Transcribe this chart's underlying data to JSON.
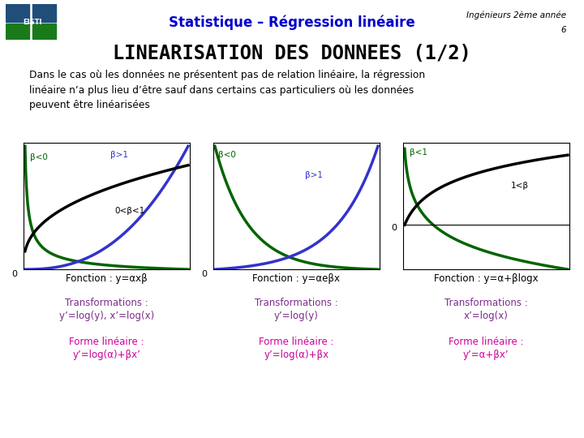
{
  "title": "Statistique – Régression linéaire",
  "subtitle": "LINEARISATION DES DONNEES (1/2)",
  "top_right_line1": "Ingénieurs 2ème année",
  "top_right_line2": "6",
  "body_text": "Dans le cas où les données ne présentent pas de relation linéaire, la régression\nlinéaire n’a plus lieu d’être sauf dans certains cas particuliers où les données\npeuvent être linéarisées",
  "panel1_label0": "β<0",
  "panel1_label1": "β>1",
  "panel1_label2": "0<β<1",
  "panel2_label0": "β<0",
  "panel2_label1": "β>1",
  "panel3_label0": "β<1",
  "panel3_label1": "1<β",
  "func1": "Fonction : y=αxβ",
  "func2": "Fonction : y=αeβx",
  "func3": "Fonction : y=α+βlogx",
  "trans1_line1": "Transformations :",
  "trans1_line2": "y’=log(y), x’=log(x)",
  "trans2_line1": "Transformations :",
  "trans2_line2": "y’=log(y)",
  "trans3_line1": "Transformations :",
  "trans3_line2": "x’=log(x)",
  "forme1_line1": "Forme linéaire :",
  "forme1_line2": "y’=log(α)+βx’",
  "forme2_line1": "Forme linéaire :",
  "forme2_line2": "y’=log(α)+βx",
  "forme3_line1": "Forme linéaire :",
  "forme3_line2": "y’=α+βx’",
  "color_title_blue": "#0000CD",
  "color_purple": "#7B2D8B",
  "color_magenta": "#CC0099",
  "color_green": "#006400",
  "color_blue_curve": "#3333CC",
  "color_black": "#000000",
  "color_bg": "#FFFFFF"
}
